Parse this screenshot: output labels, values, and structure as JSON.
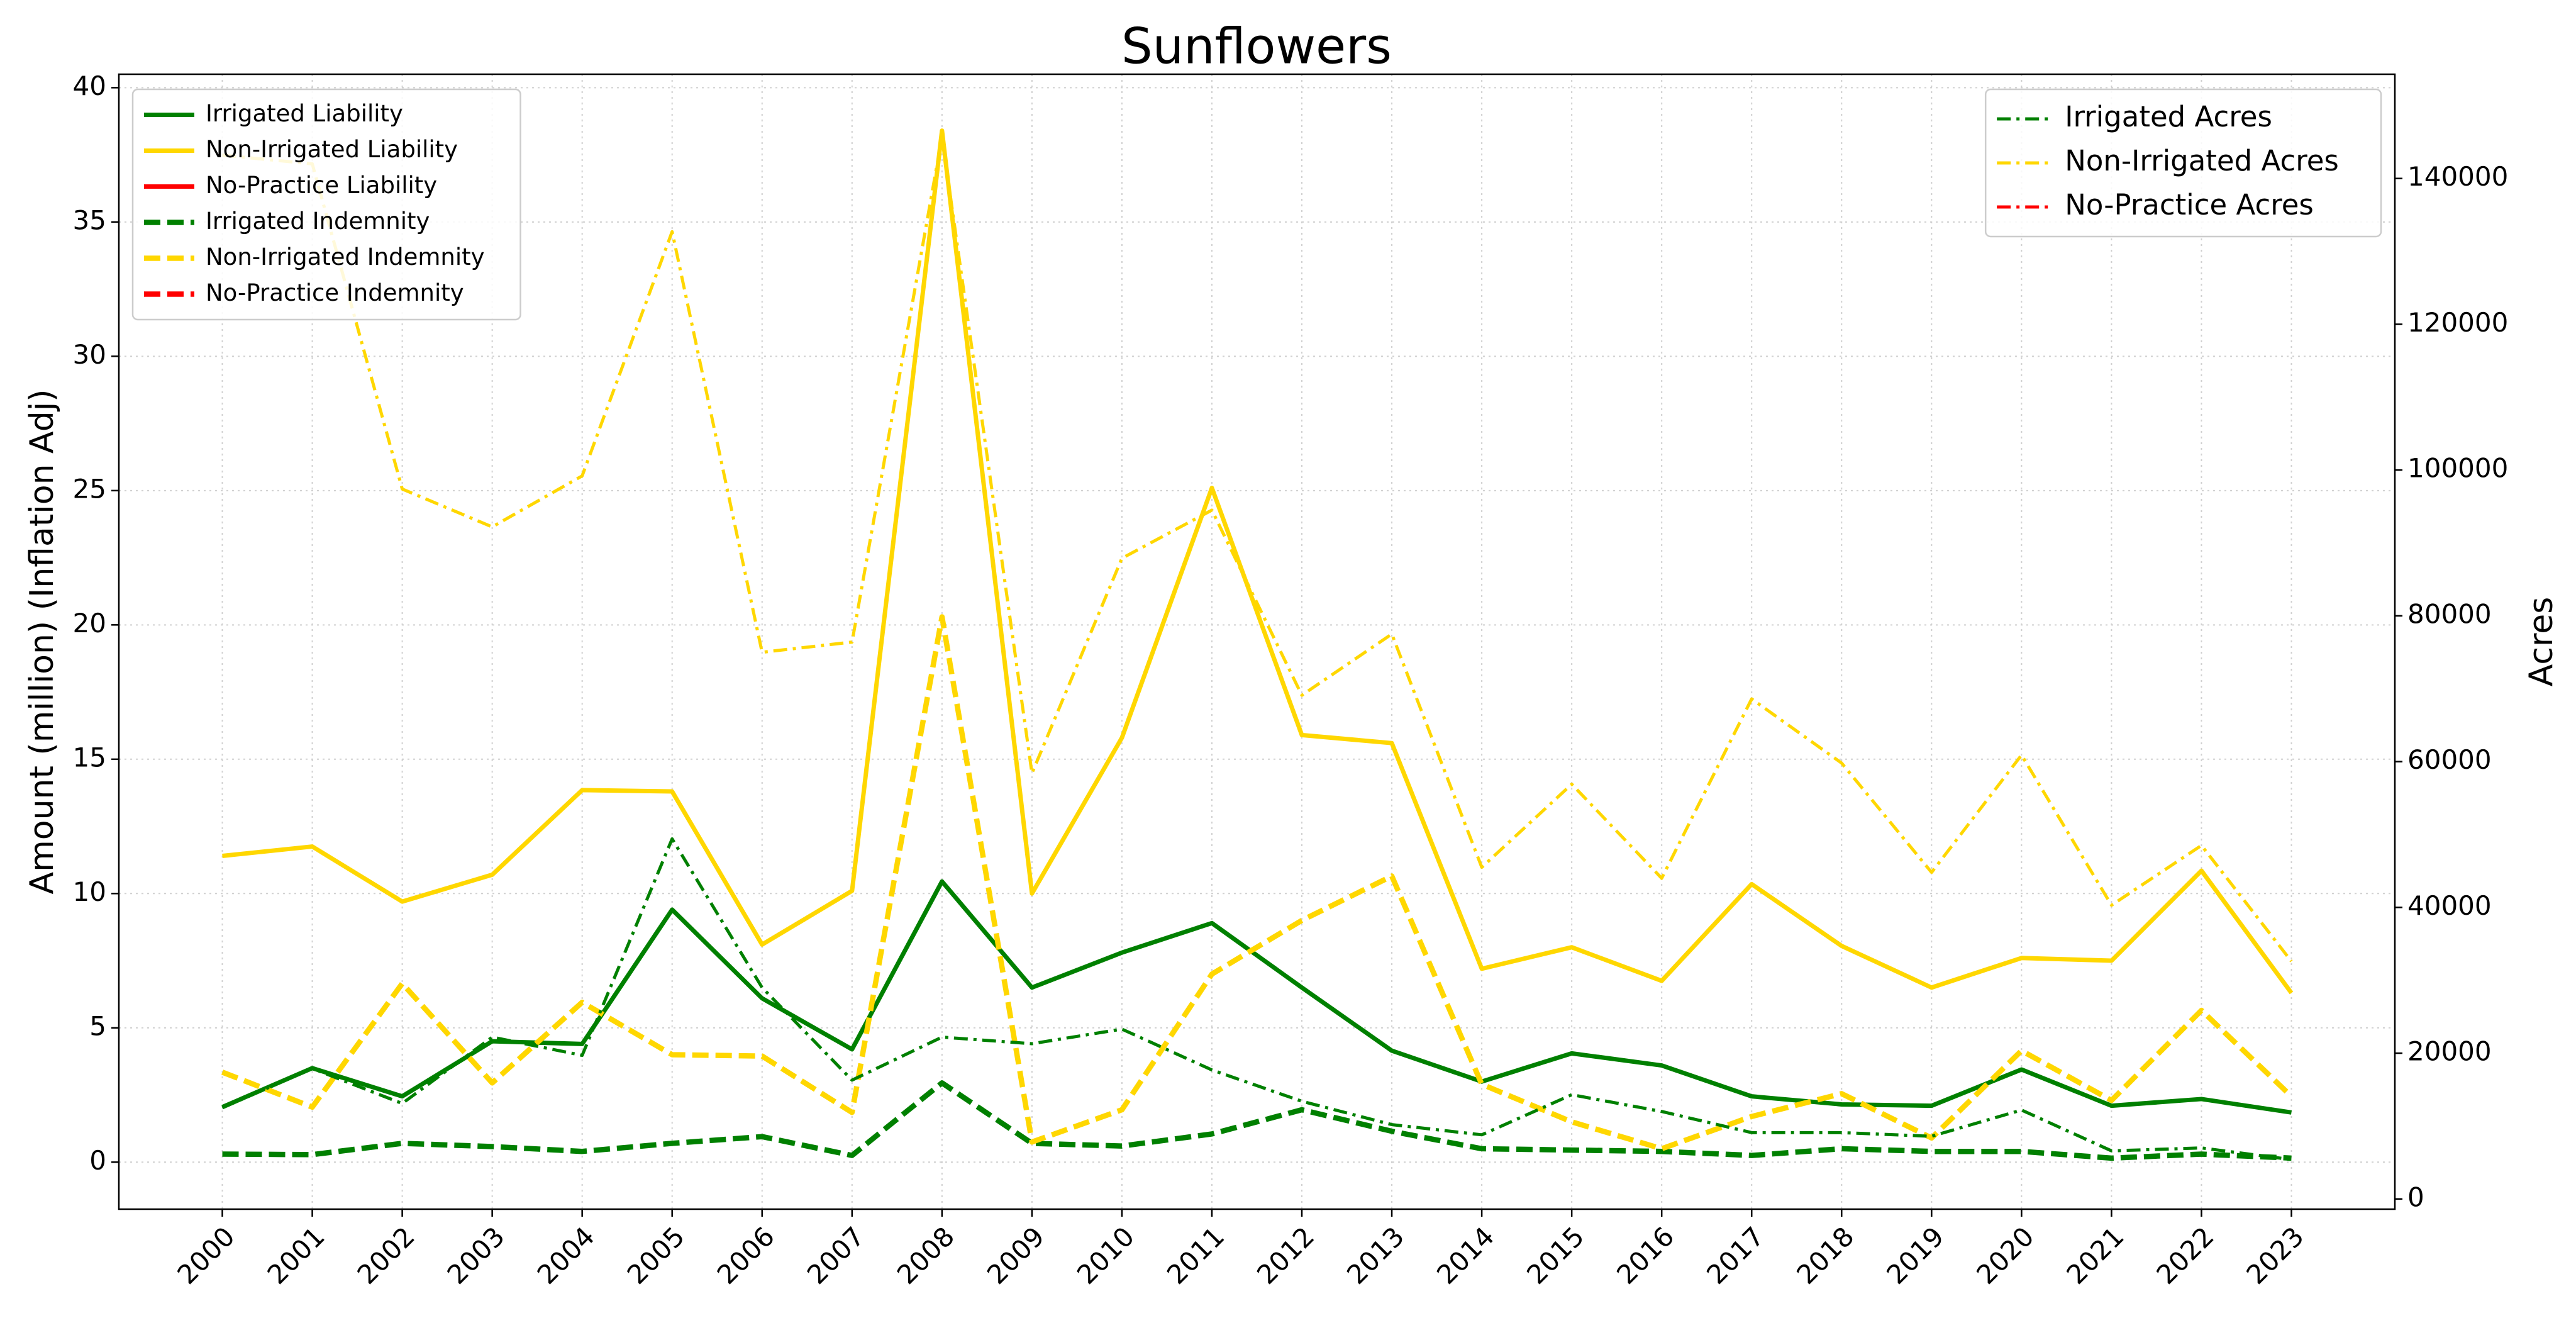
{
  "chart_data": {
    "type": "line",
    "title": "Sunflowers",
    "ylabel": "Amount (million) (Inflation Adj)",
    "y2label": "Acres",
    "categories": [
      "2000",
      "2001",
      "2002",
      "2003",
      "2004",
      "2005",
      "2006",
      "2007",
      "2008",
      "2009",
      "2010",
      "2011",
      "2012",
      "2013",
      "2014",
      "2015",
      "2016",
      "2017",
      "2018",
      "2019",
      "2020",
      "2021",
      "2022",
      "2023"
    ],
    "ylim": [
      -1.75,
      40.5
    ],
    "yticks": [
      0,
      5,
      10,
      15,
      20,
      25,
      30,
      35,
      40
    ],
    "y2lim": [
      -1400,
      154300
    ],
    "y2ticks": [
      0,
      20000,
      40000,
      60000,
      80000,
      100000,
      120000,
      140000
    ],
    "grid": true,
    "legend_loc": "upper left",
    "legend2_loc": "upper right",
    "series": [
      {
        "name": "Irrigated Liability",
        "color": "#008000",
        "style": "solid",
        "axis": "y",
        "values": [
          2.05,
          3.5,
          2.45,
          4.5,
          4.4,
          9.4,
          6.1,
          4.2,
          10.45,
          6.5,
          7.8,
          8.9,
          6.5,
          4.15,
          3.0,
          4.05,
          3.6,
          2.45,
          2.15,
          2.1,
          3.45,
          2.1,
          2.35,
          1.85
        ]
      },
      {
        "name": "Non-Irrigated Liability",
        "color": "#ffd700",
        "style": "solid",
        "axis": "y",
        "values": [
          11.4,
          11.75,
          9.7,
          10.7,
          13.85,
          13.8,
          8.1,
          10.1,
          38.4,
          10.0,
          15.8,
          25.1,
          15.9,
          15.6,
          7.2,
          8.0,
          6.75,
          10.35,
          8.05,
          6.5,
          7.6,
          7.5,
          10.85,
          6.3
        ]
      },
      {
        "name": "No-Practice Liability",
        "color": "#ff0000",
        "style": "solid",
        "axis": "y",
        "values": [
          null,
          null,
          null,
          null,
          null,
          null,
          null,
          null,
          null,
          null,
          null,
          null,
          null,
          null,
          null,
          null,
          null,
          null,
          null,
          null,
          null,
          null,
          null,
          null
        ]
      },
      {
        "name": "Irrigated Indemnity",
        "color": "#008000",
        "style": "dashed",
        "axis": "y",
        "values": [
          0.3,
          0.28,
          0.7,
          0.58,
          0.4,
          0.7,
          0.95,
          0.25,
          2.95,
          0.7,
          0.6,
          1.05,
          1.95,
          1.15,
          0.5,
          0.45,
          0.4,
          0.25,
          0.5,
          0.4,
          0.4,
          0.15,
          0.3,
          0.15
        ]
      },
      {
        "name": "Non-Irrigated Indemnity",
        "color": "#ffd700",
        "style": "dashed",
        "axis": "y",
        "values": [
          3.35,
          2.05,
          6.65,
          2.95,
          5.95,
          4.0,
          3.95,
          1.85,
          20.3,
          0.75,
          1.95,
          7.0,
          9.0,
          10.65,
          2.9,
          1.5,
          0.5,
          1.7,
          2.55,
          0.9,
          4.15,
          2.3,
          5.65,
          2.45
        ]
      },
      {
        "name": "No-Practice Indemnity",
        "color": "#ff0000",
        "style": "dashed",
        "axis": "y",
        "values": [
          null,
          null,
          null,
          null,
          null,
          null,
          null,
          null,
          null,
          null,
          null,
          null,
          null,
          null,
          null,
          null,
          null,
          null,
          null,
          null,
          null,
          null,
          null,
          null
        ]
      },
      {
        "name": "Irrigated Acres",
        "color": "#008000",
        "style": "dashdot",
        "axis": "y2",
        "values": [
          12500,
          17900,
          13100,
          22200,
          19700,
          49400,
          29000,
          16300,
          22200,
          21300,
          23300,
          17700,
          13400,
          10200,
          8800,
          14300,
          12000,
          9100,
          9100,
          8600,
          12200,
          6600,
          7000,
          5400
        ]
      },
      {
        "name": "Non-Irrigated Acres",
        "color": "#ffd700",
        "style": "dashdot",
        "axis": "y2",
        "values": [
          143200,
          142000,
          97400,
          92200,
          99200,
          132700,
          75000,
          76400,
          145700,
          58400,
          87900,
          94500,
          69100,
          77500,
          45500,
          56900,
          44000,
          68600,
          59800,
          44800,
          60900,
          40300,
          48500,
          32600
        ]
      },
      {
        "name": "No-Practice Acres",
        "color": "#ff0000",
        "style": "dashdot",
        "axis": "y2",
        "values": [
          null,
          null,
          null,
          null,
          null,
          null,
          null,
          null,
          null,
          null,
          null,
          null,
          null,
          null,
          null,
          null,
          null,
          null,
          null,
          null,
          null,
          null,
          null,
          null
        ]
      }
    ]
  }
}
